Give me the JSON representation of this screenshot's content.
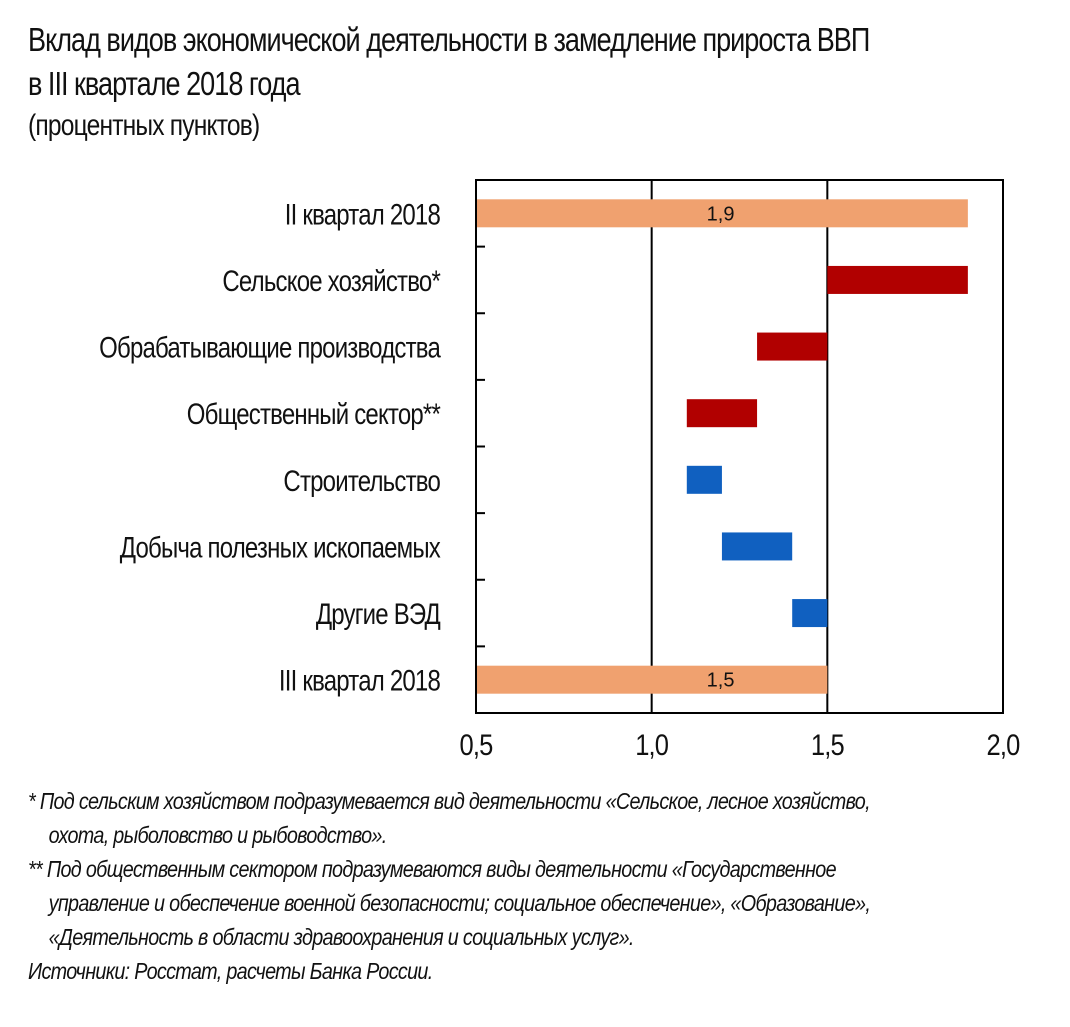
{
  "title_line1": "Вклад видов экономической деятельности в замедление прироста ВВП",
  "title_line2": "в III квартале 2018 года",
  "subtitle": "(процентных пунктов)",
  "colors": {
    "base": "#f0a16f",
    "negative": "#b10000",
    "positive": "#1060c0",
    "axis": "#000000"
  },
  "chart_data": {
    "type": "bar",
    "orientation": "horizontal-waterfall",
    "title": "Вклад видов экономической деятельности в замедление прироста ВВП в III квартале 2018 года",
    "unit": "(процентных пунктов)",
    "categories": [
      "II квартал 2018",
      "Сельское хозяйство*",
      "Обрабатывающие производства",
      "Общественный сектор**",
      "Строительство",
      "Добыча полезных ископаемых",
      "Другие ВЭД",
      "III квартал 2018"
    ],
    "bars": [
      {
        "category": "II квартал 2018",
        "start": 0.5,
        "end": 1.9,
        "kind": "base",
        "label": "1,9"
      },
      {
        "category": "Сельское хозяйство*",
        "start": 1.5,
        "end": 1.9,
        "kind": "negative"
      },
      {
        "category": "Обрабатывающие производства",
        "start": 1.3,
        "end": 1.5,
        "kind": "negative"
      },
      {
        "category": "Общественный сектор**",
        "start": 1.1,
        "end": 1.3,
        "kind": "negative"
      },
      {
        "category": "Строительство",
        "start": 1.1,
        "end": 1.2,
        "kind": "positive"
      },
      {
        "category": "Добыча полезных ископаемых",
        "start": 1.2,
        "end": 1.4,
        "kind": "positive"
      },
      {
        "category": "Другие ВЭД",
        "start": 1.4,
        "end": 1.5,
        "kind": "positive"
      },
      {
        "category": "III квартал 2018",
        "start": 0.5,
        "end": 1.5,
        "kind": "base",
        "label": "1,5"
      }
    ],
    "xlim": [
      0.5,
      2.0
    ],
    "xticks": [
      0.5,
      1.0,
      1.5,
      2.0
    ],
    "xtick_labels": [
      "0,5",
      "1,0",
      "1,5",
      "2,0"
    ],
    "grid": "vertical",
    "legend": "none"
  },
  "footnotes": {
    "fn1_line1": "* Под сельским хозяйством подразумевается вид деятельности «Сельское, лесное хозяйство,",
    "fn1_line2": "охота, рыболовство и рыбоводство».",
    "fn2_line1": "** Под общественным сектором подразумеваются виды деятельности «Государственное",
    "fn2_line2": "управление и обеспечение военной безопасности; социальное обеспечение», «Образование»,",
    "fn2_line3": "«Деятельность в области здравоохранения и социальных услуг».",
    "sources": "Источники: Росстат, расчеты Банка России."
  }
}
